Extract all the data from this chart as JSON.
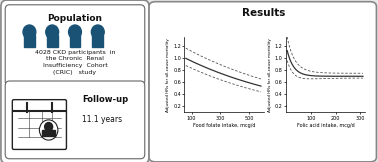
{
  "title_results": "Results",
  "title_population": "Population",
  "population_text": "4028 CKD participants  in\nthe Chronic  Renal\nInsufficiency  Cohort\n(CRIC)   study",
  "followup_label": "Follow-up",
  "followup_value": "11.1 years",
  "plot1_xlabel": "Food folate intake, mcg/d",
  "plot2_xlabel": "Folic acid intake, mcg/d",
  "ylabel": "Adjusted HRs for all-cause mortality",
  "plot1_xlim": [
    50,
    600
  ],
  "plot1_ylim": [
    0.1,
    1.35
  ],
  "plot1_xticks": [
    100,
    300,
    500
  ],
  "plot1_yticks": [
    0.2,
    0.4,
    0.6,
    0.8,
    1.0,
    1.2
  ],
  "plot2_xlim": [
    0,
    320
  ],
  "plot2_ylim": [
    0.1,
    1.35
  ],
  "plot2_xticks": [
    100,
    200,
    300
  ],
  "plot2_yticks": [
    0.2,
    0.4,
    0.6,
    0.8,
    1.0,
    1.2
  ],
  "line_color": "#333333",
  "dash_color": "#555555",
  "icon_color": "#1a5276",
  "text_color": "#111111"
}
